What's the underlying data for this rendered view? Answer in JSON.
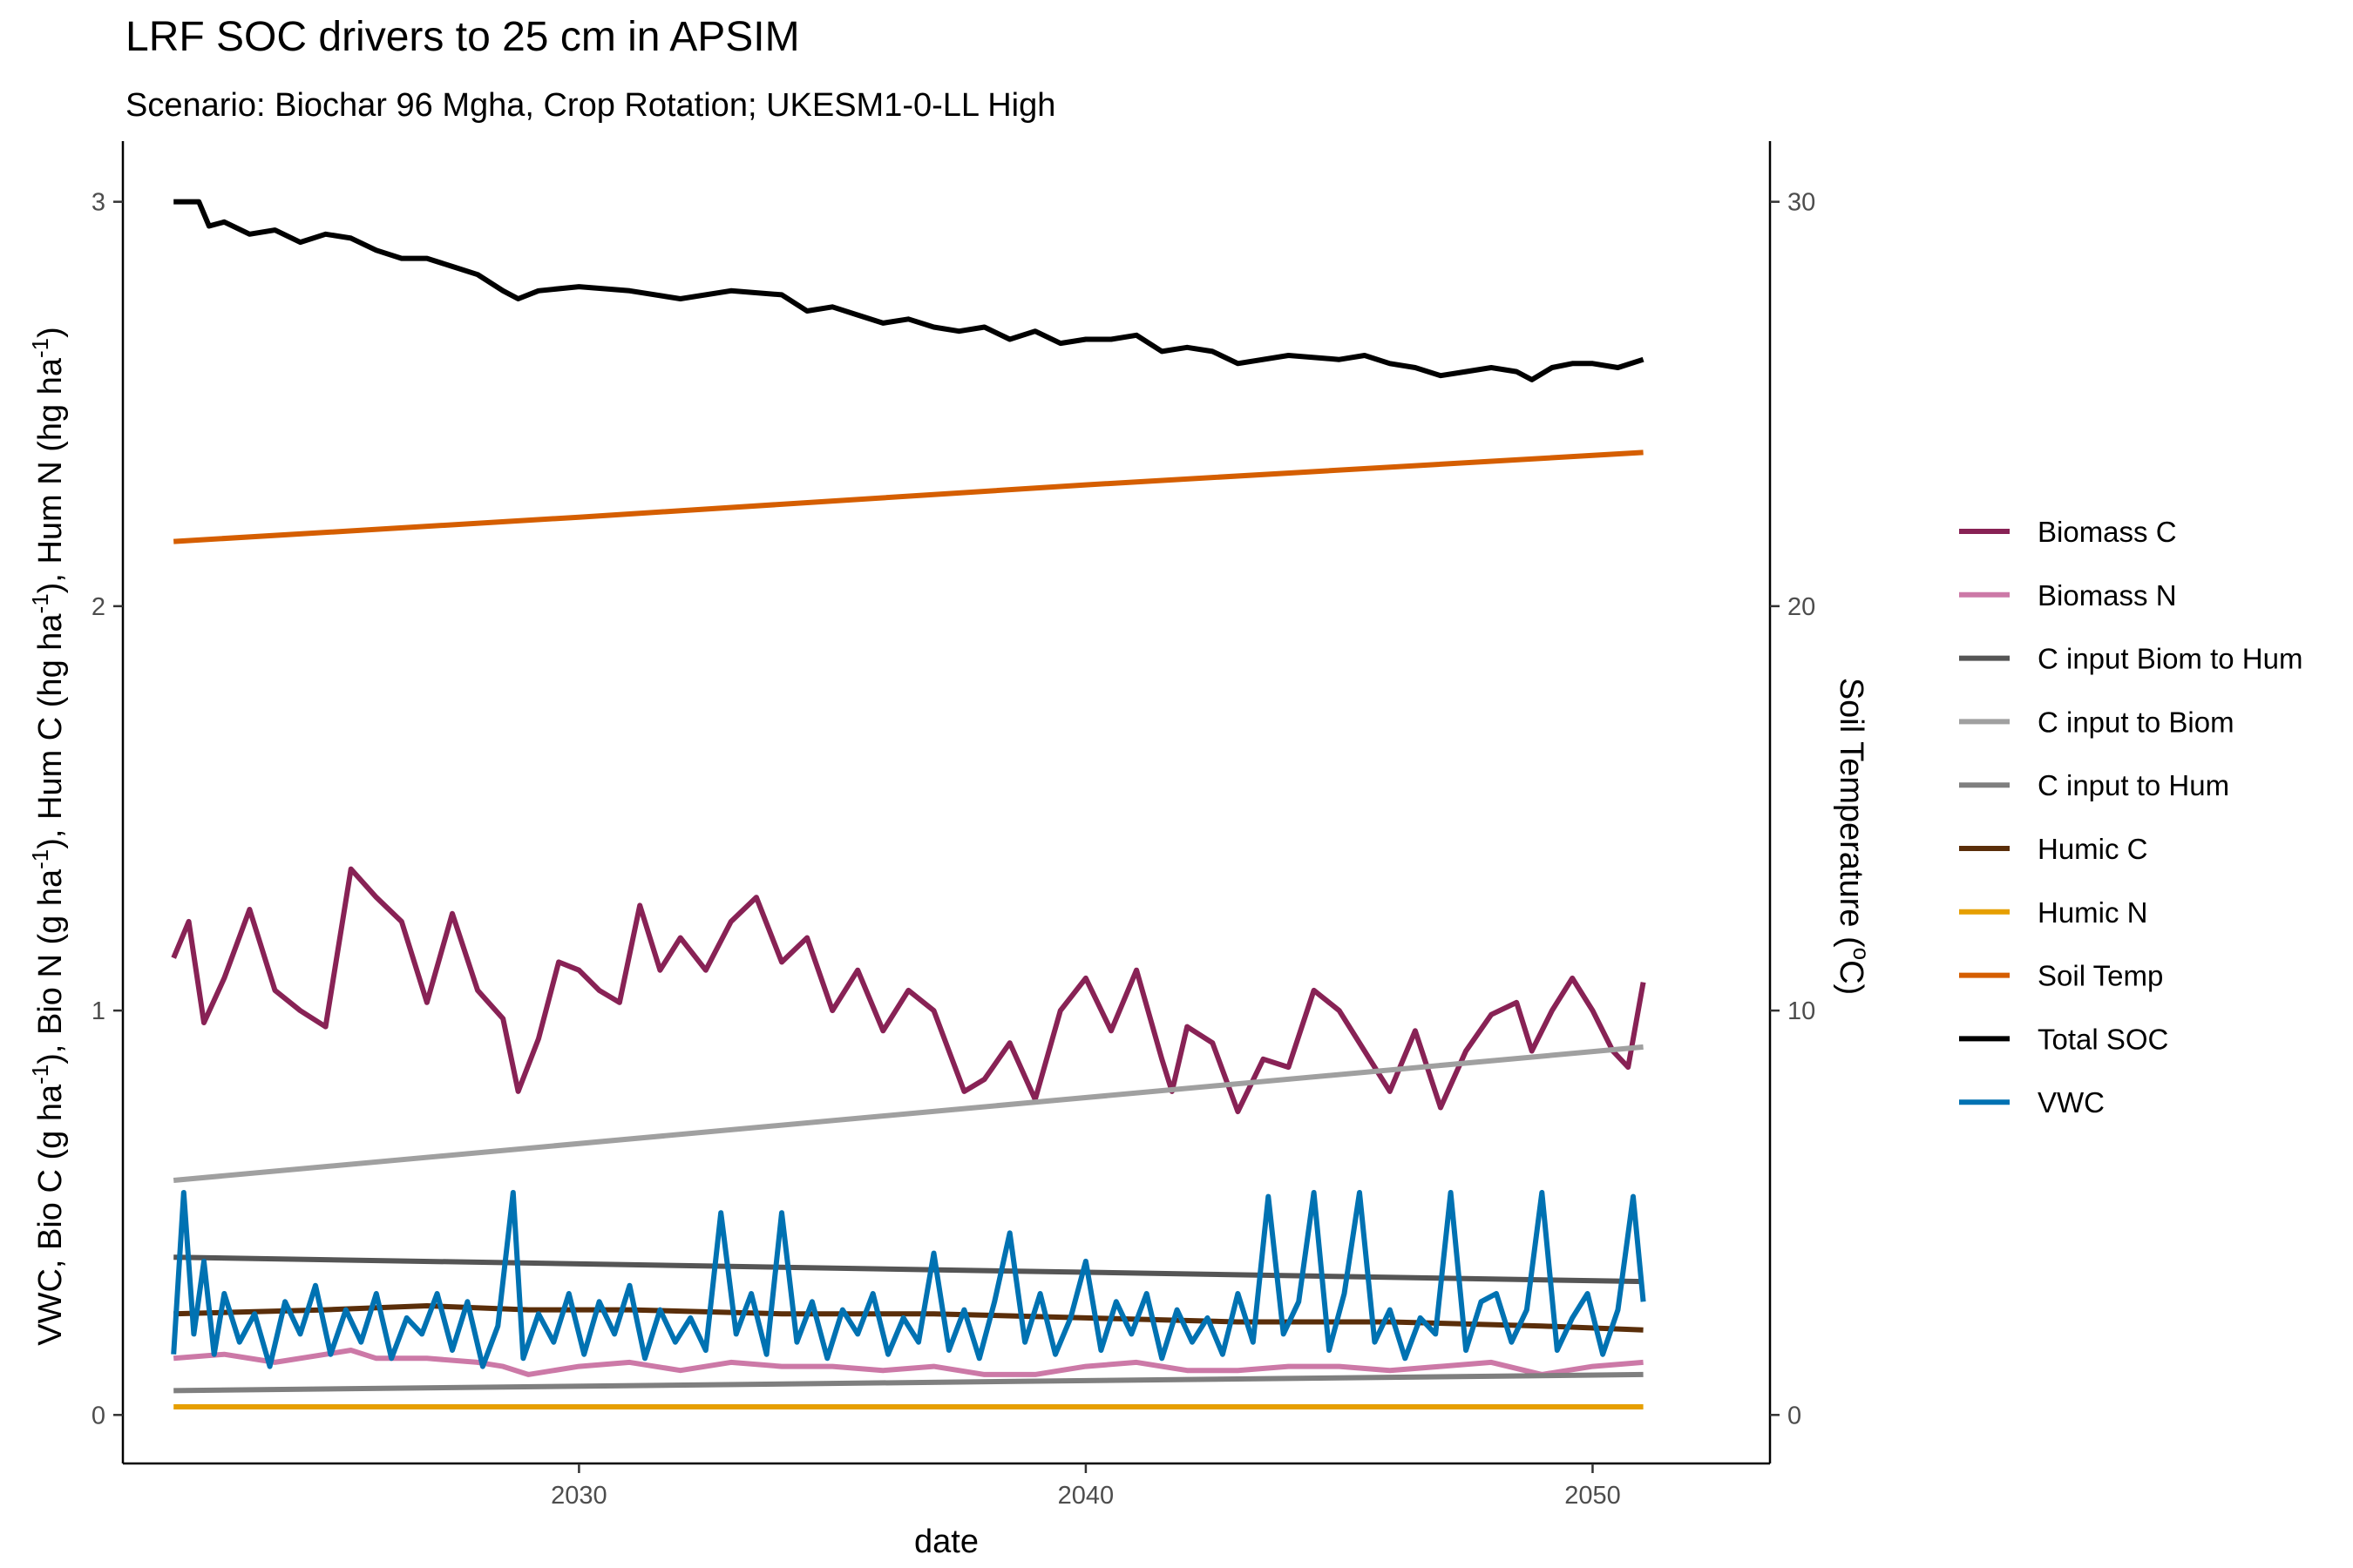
{
  "chart_data": {
    "type": "line",
    "title": "LRF SOC drivers to 25 cm in APSIM",
    "subtitle": "Scenario: Biochar 96 Mgha, Crop Rotation; UKESM1-0-LL High",
    "xlabel": "date",
    "ylabel_parts": [
      {
        "t": "VWC, Bio C (g ha"
      },
      {
        "t": "-1",
        "sup": true
      },
      {
        "t": "), Bio N (g ha"
      },
      {
        "t": "-1",
        "sup": true
      },
      {
        "t": "), Hum C (hg ha"
      },
      {
        "t": "-1",
        "sup": true
      },
      {
        "t": "), Hum N (hg ha"
      },
      {
        "t": "-1",
        "sup": true
      },
      {
        "t": ")"
      }
    ],
    "y2label_parts": [
      {
        "t": "Soil Temperature ("
      },
      {
        "t": "o",
        "sup": true
      },
      {
        "t": "C)"
      }
    ],
    "xlim": [
      2021.0,
      2053.5
    ],
    "ylim": [
      -0.12,
      3.15
    ],
    "y2_scale": 10,
    "x_ticks": [
      2030,
      2040,
      2050
    ],
    "x_tick_labels": [
      "2030",
      "2040",
      "2050"
    ],
    "y_ticks": [
      0,
      1,
      2,
      3
    ],
    "y_tick_labels": [
      "0",
      "1",
      "2",
      "3"
    ],
    "y2_ticks": [
      0,
      10,
      20,
      30
    ],
    "y2_tick_labels": [
      "0",
      "10",
      "20",
      "30"
    ],
    "grid": false,
    "legend_position": "right",
    "series": [
      {
        "name": "Biomass C",
        "color": "#882255",
        "x": [
          2022.0,
          2022.3,
          2022.6,
          2023.0,
          2023.5,
          2024.0,
          2024.5,
          2025.0,
          2025.5,
          2026.0,
          2026.5,
          2027.0,
          2027.5,
          2028.0,
          2028.5,
          2028.8,
          2029.2,
          2029.6,
          2030.0,
          2030.4,
          2030.8,
          2031.2,
          2031.6,
          2032.0,
          2032.5,
          2033.0,
          2033.5,
          2034.0,
          2034.5,
          2035.0,
          2035.5,
          2036.0,
          2036.5,
          2037.0,
          2037.3,
          2037.6,
          2038.0,
          2038.5,
          2039.0,
          2039.5,
          2040.0,
          2040.5,
          2041.0,
          2041.5,
          2041.7,
          2042.0,
          2042.5,
          2043.0,
          2043.5,
          2044.0,
          2044.5,
          2045.0,
          2045.5,
          2046.0,
          2046.5,
          2047.0,
          2047.5,
          2048.0,
          2048.5,
          2048.8,
          2049.2,
          2049.6,
          2050.0,
          2050.4,
          2050.7,
          2051.0
        ],
        "y": [
          1.13,
          1.22,
          0.97,
          1.08,
          1.25,
          1.05,
          1.0,
          0.96,
          1.35,
          1.28,
          1.22,
          1.02,
          1.24,
          1.05,
          0.98,
          0.8,
          0.93,
          1.12,
          1.1,
          1.05,
          1.02,
          1.26,
          1.1,
          1.18,
          1.1,
          1.22,
          1.28,
          1.12,
          1.18,
          1.0,
          1.1,
          0.95,
          1.05,
          1.0,
          0.9,
          0.8,
          0.83,
          0.92,
          0.78,
          1.0,
          1.08,
          0.95,
          1.1,
          0.88,
          0.8,
          0.96,
          0.92,
          0.75,
          0.88,
          0.86,
          1.05,
          1.0,
          0.9,
          0.8,
          0.95,
          0.76,
          0.9,
          0.99,
          1.02,
          0.9,
          1.0,
          1.08,
          1.0,
          0.9,
          0.86,
          1.07
        ]
      },
      {
        "name": "Biomass N",
        "color": "#CC79A7",
        "x": [
          2022.0,
          2023.0,
          2024.0,
          2025.0,
          2025.5,
          2026.0,
          2027.0,
          2028.0,
          2028.5,
          2029.0,
          2030.0,
          2031.0,
          2032.0,
          2033.0,
          2034.0,
          2035.0,
          2036.0,
          2037.0,
          2038.0,
          2039.0,
          2040.0,
          2041.0,
          2042.0,
          2043.0,
          2044.0,
          2045.0,
          2046.0,
          2047.0,
          2048.0,
          2049.0,
          2050.0,
          2051.0
        ],
        "y": [
          0.14,
          0.15,
          0.13,
          0.15,
          0.16,
          0.14,
          0.14,
          0.13,
          0.12,
          0.1,
          0.12,
          0.13,
          0.11,
          0.13,
          0.12,
          0.12,
          0.11,
          0.12,
          0.1,
          0.1,
          0.12,
          0.13,
          0.11,
          0.11,
          0.12,
          0.12,
          0.11,
          0.12,
          0.13,
          0.1,
          0.12,
          0.13
        ]
      },
      {
        "name": "C input Biom to Hum",
        "color": "#555555",
        "x": [
          2022.0,
          2051.0
        ],
        "y": [
          0.39,
          0.33
        ]
      },
      {
        "name": "C input to Biom",
        "color": "#A0A0A0",
        "x": [
          2022.0,
          2051.0
        ],
        "y": [
          0.58,
          0.91
        ]
      },
      {
        "name": "C input to Hum",
        "color": "#7F7F7F",
        "x": [
          2022.0,
          2051.0
        ],
        "y": [
          0.06,
          0.1
        ]
      },
      {
        "name": "Humic C",
        "color": "#5A2E0A",
        "x": [
          2022.0,
          2025.0,
          2027.0,
          2029.0,
          2031.0,
          2034.0,
          2037.0,
          2040.0,
          2043.0,
          2046.0,
          2049.0,
          2051.0
        ],
        "y": [
          0.25,
          0.26,
          0.27,
          0.26,
          0.26,
          0.25,
          0.25,
          0.24,
          0.23,
          0.23,
          0.22,
          0.21
        ]
      },
      {
        "name": "Humic N",
        "color": "#E69F00",
        "x": [
          2022.0,
          2051.0
        ],
        "y": [
          0.02,
          0.02
        ]
      },
      {
        "name": "Soil Temp",
        "color": "#D55E00",
        "x": [
          2022.0,
          2030.0,
          2040.0,
          2051.0
        ],
        "y": [
          21.6,
          22.2,
          23.0,
          23.8
        ]
      },
      {
        "name": "Total SOC",
        "color": "#000000",
        "x": [
          2022.0,
          2022.5,
          2022.7,
          2023.0,
          2023.5,
          2024.0,
          2024.5,
          2025.0,
          2025.5,
          2026.0,
          2026.5,
          2027.0,
          2027.5,
          2028.0,
          2028.5,
          2028.8,
          2029.2,
          2030.0,
          2031.0,
          2032.0,
          2033.0,
          2034.0,
          2034.5,
          2035.0,
          2035.5,
          2036.0,
          2036.5,
          2037.0,
          2037.5,
          2038.0,
          2038.5,
          2039.0,
          2039.5,
          2040.0,
          2040.5,
          2041.0,
          2041.5,
          2042.0,
          2042.5,
          2043.0,
          2044.0,
          2045.0,
          2045.5,
          2046.0,
          2046.5,
          2047.0,
          2047.5,
          2048.0,
          2048.5,
          2048.8,
          2049.2,
          2049.6,
          2050.0,
          2050.5,
          2051.0
        ],
        "y": [
          3.0,
          3.0,
          2.94,
          2.95,
          2.92,
          2.93,
          2.9,
          2.92,
          2.91,
          2.88,
          2.86,
          2.86,
          2.84,
          2.82,
          2.78,
          2.76,
          2.78,
          2.79,
          2.78,
          2.76,
          2.78,
          2.77,
          2.73,
          2.74,
          2.72,
          2.7,
          2.71,
          2.69,
          2.68,
          2.69,
          2.66,
          2.68,
          2.65,
          2.66,
          2.66,
          2.67,
          2.63,
          2.64,
          2.63,
          2.6,
          2.62,
          2.61,
          2.62,
          2.6,
          2.59,
          2.57,
          2.58,
          2.59,
          2.58,
          2.56,
          2.59,
          2.6,
          2.6,
          2.59,
          2.61
        ]
      },
      {
        "name": "VWC",
        "color": "#0072B2",
        "x": [
          2022.0,
          2022.2,
          2022.4,
          2022.6,
          2022.8,
          2023.0,
          2023.3,
          2023.6,
          2023.9,
          2024.2,
          2024.5,
          2024.8,
          2025.1,
          2025.4,
          2025.7,
          2026.0,
          2026.3,
          2026.6,
          2026.9,
          2027.2,
          2027.5,
          2027.8,
          2028.1,
          2028.4,
          2028.7,
          2028.9,
          2029.2,
          2029.5,
          2029.8,
          2030.1,
          2030.4,
          2030.7,
          2031.0,
          2031.3,
          2031.6,
          2031.9,
          2032.2,
          2032.5,
          2032.8,
          2033.1,
          2033.4,
          2033.7,
          2034.0,
          2034.3,
          2034.6,
          2034.9,
          2035.2,
          2035.5,
          2035.8,
          2036.1,
          2036.4,
          2036.7,
          2037.0,
          2037.3,
          2037.6,
          2037.9,
          2038.2,
          2038.5,
          2038.8,
          2039.1,
          2039.4,
          2039.7,
          2040.0,
          2040.3,
          2040.6,
          2040.9,
          2041.2,
          2041.5,
          2041.8,
          2042.1,
          2042.4,
          2042.7,
          2043.0,
          2043.3,
          2043.6,
          2043.9,
          2044.2,
          2044.5,
          2044.8,
          2045.1,
          2045.4,
          2045.7,
          2046.0,
          2046.3,
          2046.6,
          2046.9,
          2047.2,
          2047.5,
          2047.8,
          2048.1,
          2048.4,
          2048.7,
          2049.0,
          2049.3,
          2049.6,
          2049.9,
          2050.2,
          2050.5,
          2050.8,
          2051.0
        ],
        "y": [
          0.15,
          0.55,
          0.2,
          0.38,
          0.15,
          0.3,
          0.18,
          0.25,
          0.12,
          0.28,
          0.2,
          0.32,
          0.15,
          0.26,
          0.18,
          0.3,
          0.14,
          0.24,
          0.2,
          0.3,
          0.16,
          0.28,
          0.12,
          0.22,
          0.55,
          0.14,
          0.25,
          0.18,
          0.3,
          0.15,
          0.28,
          0.2,
          0.32,
          0.14,
          0.26,
          0.18,
          0.24,
          0.16,
          0.5,
          0.2,
          0.3,
          0.15,
          0.5,
          0.18,
          0.28,
          0.14,
          0.26,
          0.2,
          0.3,
          0.15,
          0.24,
          0.18,
          0.4,
          0.16,
          0.26,
          0.14,
          0.28,
          0.45,
          0.18,
          0.3,
          0.15,
          0.24,
          0.38,
          0.16,
          0.28,
          0.2,
          0.3,
          0.14,
          0.26,
          0.18,
          0.24,
          0.15,
          0.3,
          0.18,
          0.54,
          0.2,
          0.28,
          0.55,
          0.16,
          0.3,
          0.55,
          0.18,
          0.26,
          0.14,
          0.24,
          0.2,
          0.55,
          0.16,
          0.28,
          0.3,
          0.18,
          0.26,
          0.55,
          0.16,
          0.24,
          0.3,
          0.15,
          0.26,
          0.54,
          0.28
        ]
      }
    ]
  }
}
